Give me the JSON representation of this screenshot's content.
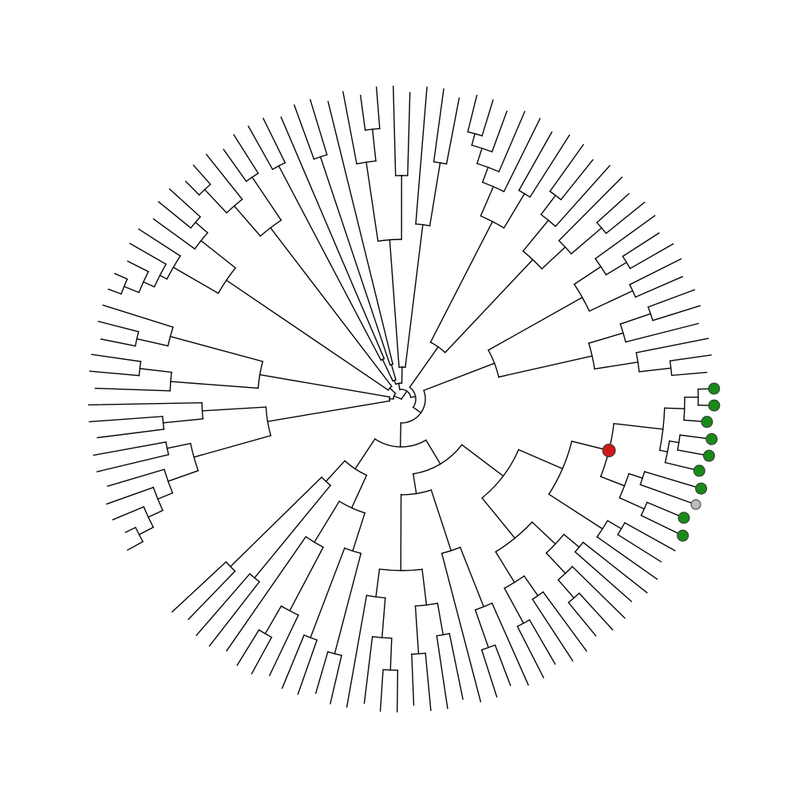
{
  "figure": {
    "type": "circular-phylogenetic-tree",
    "layout": "fan",
    "branch_color": "#000000",
    "background": "#ffffff"
  },
  "legend_colors": {
    "clade_tip": "#1a8a1a",
    "ancestral_node": "#cc1a1a",
    "uncertain_tip": "#bbbbbb"
  },
  "highlighted_clade": {
    "internal_node_marker": "red",
    "tip_markers": [
      "green",
      "green",
      "green",
      "green",
      "green",
      "green",
      "green",
      "grey",
      "green",
      "green"
    ]
  }
}
